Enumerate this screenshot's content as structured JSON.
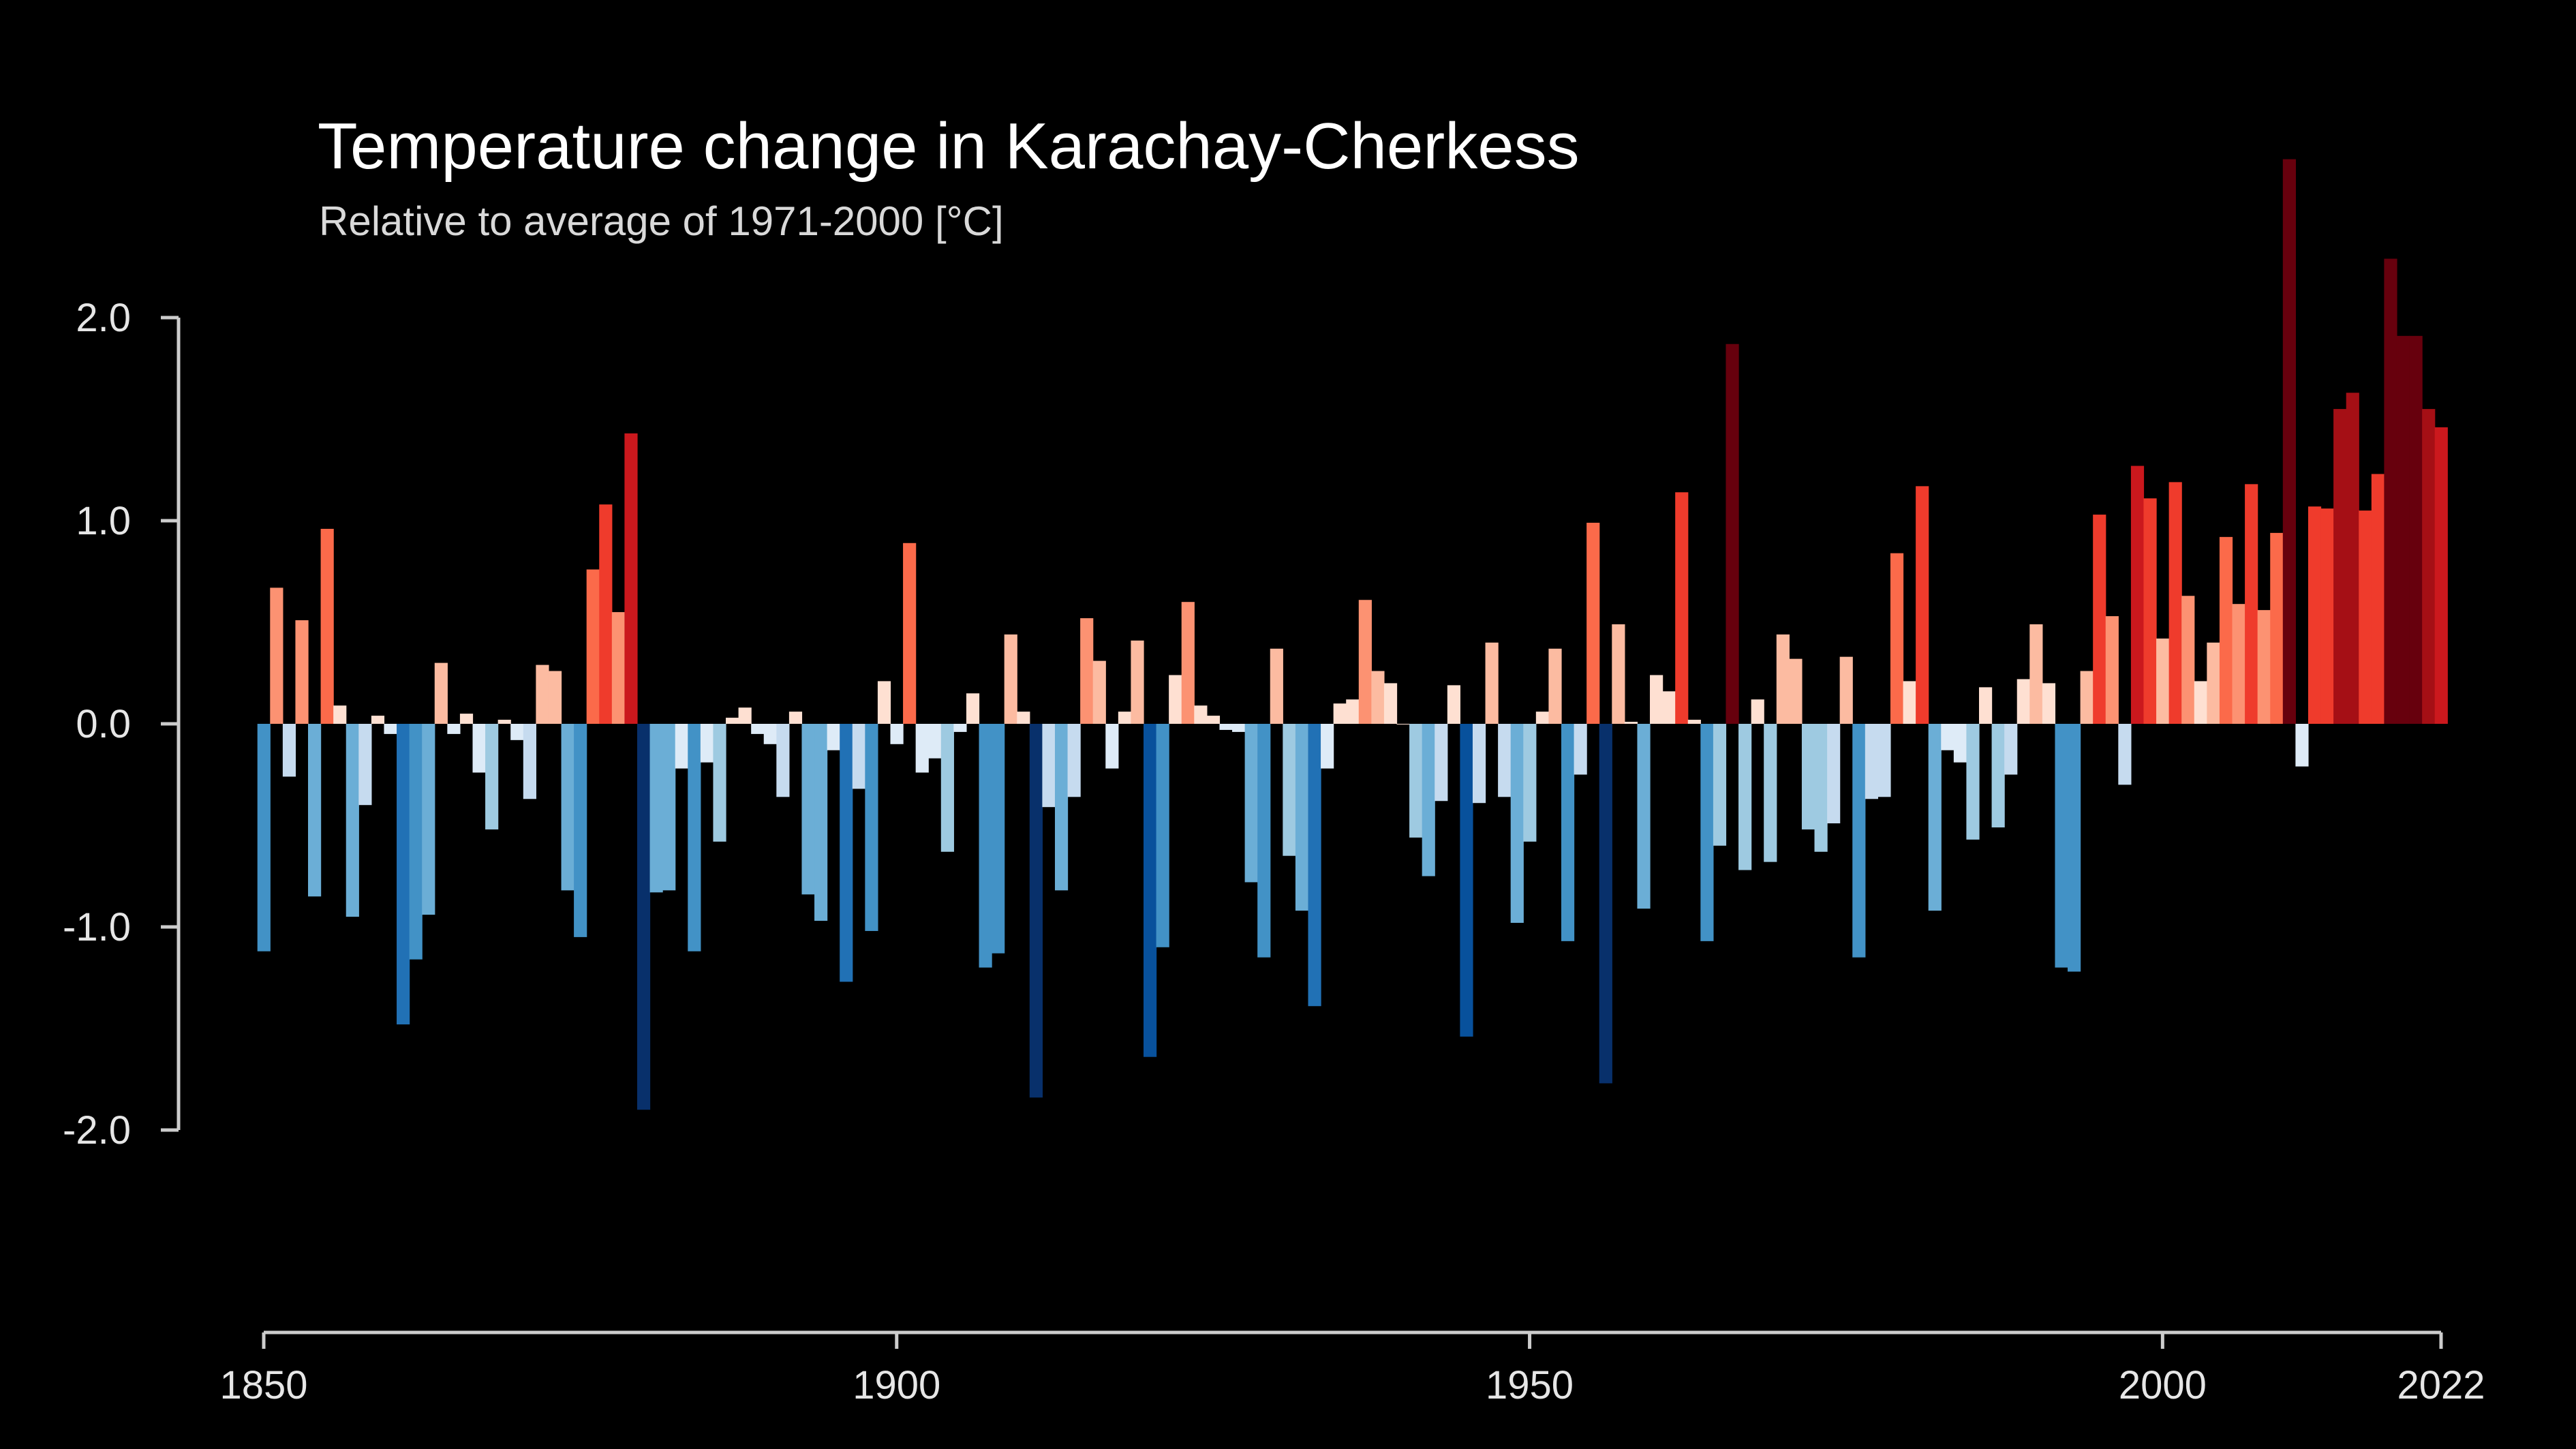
{
  "title": "Temperature change in Karachay-Cherkess",
  "subtitle": "Relative to average of 1971-2000  [°C]",
  "chart_data": {
    "type": "bar",
    "title": "Temperature change in Karachay-Cherkess",
    "subtitle": "Relative to average of 1971-2000  [°C]",
    "xlabel": "",
    "ylabel": "",
    "x_start": 1850,
    "x_end": 2022,
    "ylim": [
      -2.8,
      2.8
    ],
    "y_ticks": [
      2.0,
      1.0,
      0.0,
      -1.0,
      -2.0
    ],
    "y_tick_labels": [
      "2.0",
      "1.0",
      "0.0",
      "-1.0",
      "-2.0"
    ],
    "x_ticks": [
      1850,
      1900,
      1950,
      2000,
      2022
    ],
    "x_tick_labels": [
      "1850",
      "1900",
      "1950",
      "2000",
      "2022"
    ],
    "grid": false,
    "legend": "none",
    "color_scale": "warming stripes: blue for negative anomalies, red for positive anomalies",
    "colors": {
      "background": "#000000",
      "axis": "#cccccc",
      "text": "#e6e6e6"
    },
    "years": [
      1850,
      1851,
      1852,
      1853,
      1854,
      1855,
      1856,
      1857,
      1858,
      1859,
      1860,
      1861,
      1862,
      1863,
      1864,
      1865,
      1866,
      1867,
      1868,
      1869,
      1870,
      1871,
      1872,
      1873,
      1874,
      1875,
      1876,
      1877,
      1878,
      1879,
      1880,
      1881,
      1882,
      1883,
      1884,
      1885,
      1886,
      1887,
      1888,
      1889,
      1890,
      1891,
      1892,
      1893,
      1894,
      1895,
      1896,
      1897,
      1898,
      1899,
      1900,
      1901,
      1902,
      1903,
      1904,
      1905,
      1906,
      1907,
      1908,
      1909,
      1910,
      1911,
      1912,
      1913,
      1914,
      1915,
      1916,
      1917,
      1918,
      1919,
      1920,
      1921,
      1922,
      1923,
      1924,
      1925,
      1926,
      1927,
      1928,
      1929,
      1930,
      1931,
      1932,
      1933,
      1934,
      1935,
      1936,
      1937,
      1938,
      1939,
      1940,
      1941,
      1942,
      1943,
      1944,
      1945,
      1946,
      1947,
      1948,
      1949,
      1950,
      1951,
      1952,
      1953,
      1954,
      1955,
      1956,
      1957,
      1958,
      1959,
      1960,
      1961,
      1962,
      1963,
      1964,
      1965,
      1966,
      1967,
      1968,
      1969,
      1970,
      1971,
      1972,
      1973,
      1974,
      1975,
      1976,
      1977,
      1978,
      1979,
      1980,
      1981,
      1982,
      1983,
      1984,
      1985,
      1986,
      1987,
      1988,
      1989,
      1990,
      1991,
      1992,
      1993,
      1994,
      1995,
      1996,
      1997,
      1998,
      1999,
      2000,
      2001,
      2002,
      2003,
      2004,
      2005,
      2006,
      2007,
      2008,
      2009,
      2010,
      2011,
      2012,
      2013,
      2014,
      2015,
      2016,
      2017,
      2018,
      2019,
      2020,
      2021,
      2022
    ],
    "values": [
      -1.12,
      0.67,
      -0.26,
      0.51,
      -0.85,
      0.96,
      0.09,
      -0.95,
      -0.4,
      0.04,
      -0.05,
      -1.48,
      -1.16,
      -0.94,
      0.3,
      -0.05,
      0.05,
      -0.24,
      -0.52,
      0.02,
      -0.08,
      -0.37,
      0.29,
      0.26,
      -0.82,
      -1.05,
      0.76,
      1.08,
      0.55,
      1.43,
      -1.9,
      -0.83,
      -0.82,
      -0.22,
      -1.12,
      -0.19,
      -0.58,
      0.03,
      0.08,
      -0.05,
      -0.1,
      -0.36,
      0.06,
      -0.84,
      -0.97,
      -0.13,
      -1.27,
      -0.32,
      -1.02,
      0.21,
      -0.1,
      0.89,
      -0.24,
      -0.17,
      -0.63,
      -0.04,
      0.15,
      -1.2,
      -1.13,
      0.44,
      0.06,
      -1.84,
      -0.41,
      -0.82,
      -0.36,
      0.52,
      0.31,
      -0.22,
      0.06,
      0.41,
      -1.64,
      -1.1,
      0.24,
      0.6,
      0.09,
      0.04,
      -0.03,
      -0.04,
      -0.78,
      -1.15,
      0.37,
      -0.65,
      -0.92,
      -1.39,
      -0.22,
      0.1,
      0.12,
      0.61,
      0.26,
      0.2,
      0.0,
      -0.56,
      -0.75,
      -0.38,
      0.19,
      -1.54,
      -0.39,
      0.4,
      -0.36,
      -0.98,
      -0.58,
      0.06,
      0.37,
      -1.07,
      -0.25,
      0.99,
      -1.77,
      0.49,
      0.01,
      -0.91,
      0.24,
      0.16,
      1.14,
      0.02,
      -1.07,
      -0.6,
      1.87,
      -0.72,
      0.12,
      -0.68,
      0.44,
      0.32,
      -0.52,
      -0.63,
      -0.49,
      0.33,
      -1.15,
      -0.37,
      -0.36,
      0.84,
      0.21,
      1.17,
      -0.92,
      -0.13,
      -0.19,
      -0.57,
      0.18,
      -0.51,
      -0.25,
      0.22,
      0.49,
      0.2,
      -1.2,
      -1.22,
      0.26,
      1.03,
      0.53,
      -0.3,
      1.27,
      1.11,
      0.42,
      1.19,
      0.63,
      0.21,
      0.4,
      0.92,
      0.59,
      1.18,
      0.56,
      0.94,
      2.78,
      -0.21,
      1.07,
      1.06,
      1.55,
      1.63,
      1.05,
      1.23,
      2.29,
      1.91,
      1.91,
      1.55,
      1.46
    ]
  }
}
